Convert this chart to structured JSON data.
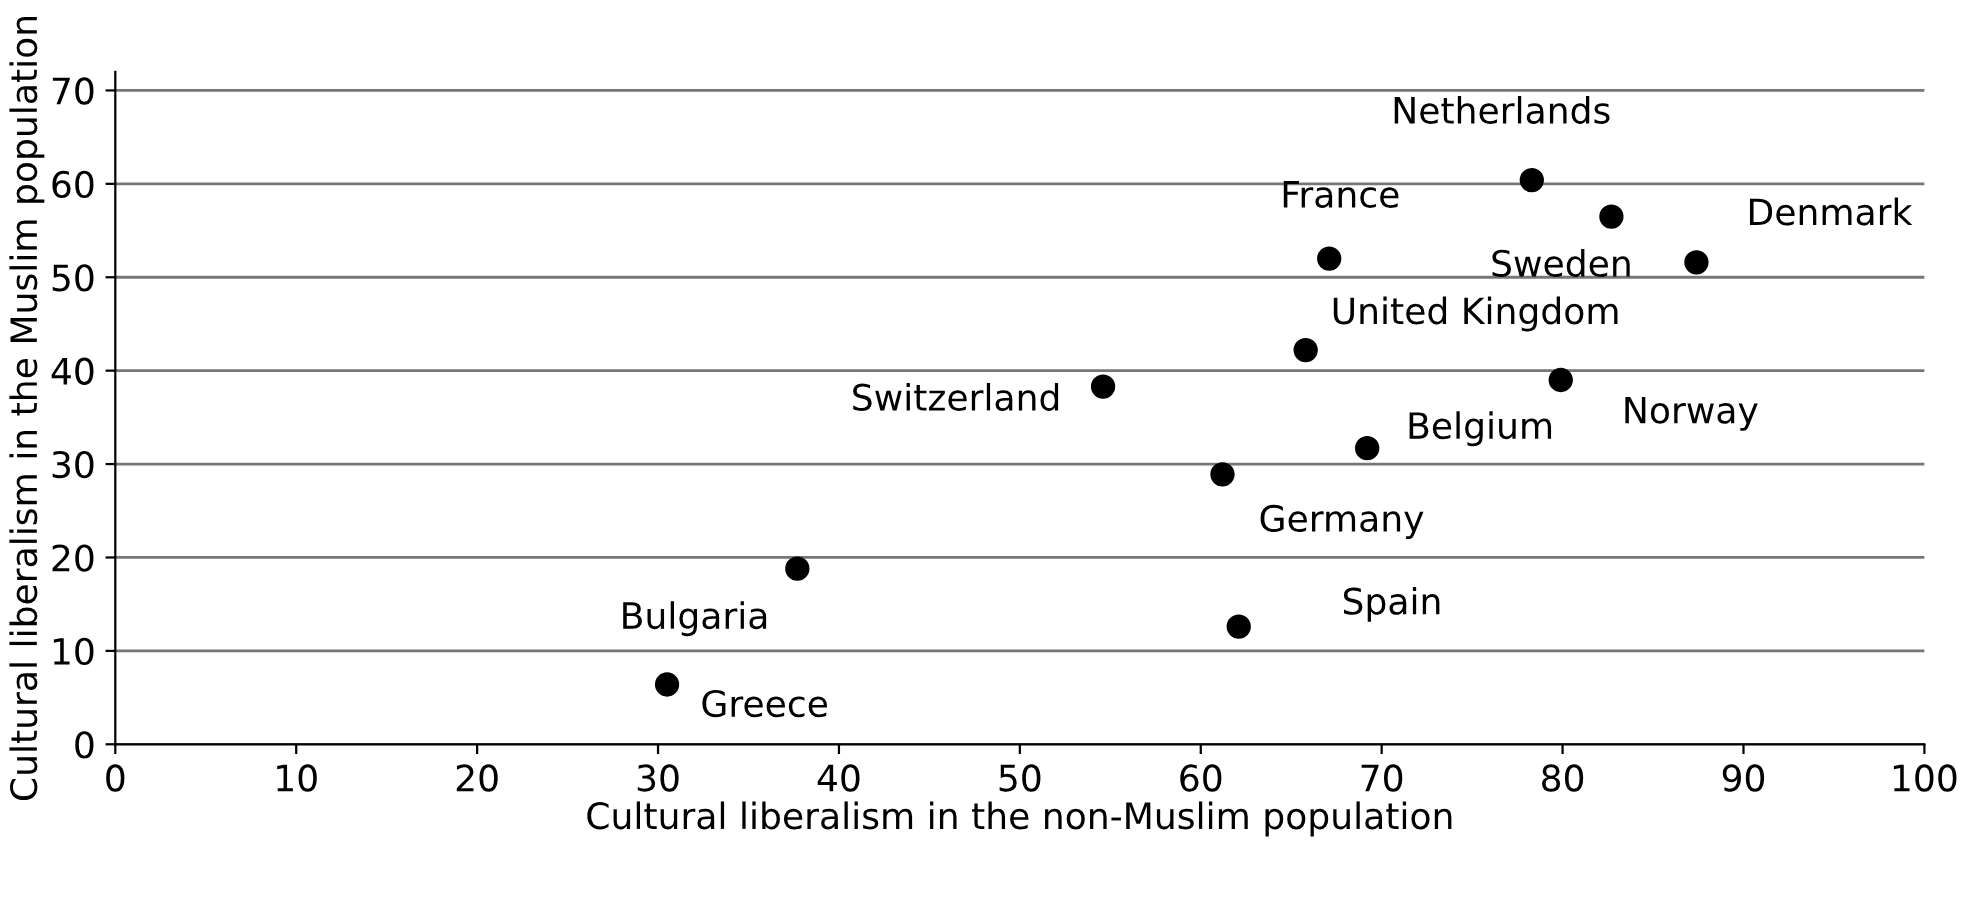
{
  "chart_data": {
    "type": "scatter",
    "xlabel": "Cultural liberalism in the non-Muslim population",
    "ylabel": "Cultural liberalism in the Muslim population",
    "x": [
      78.3,
      82.7,
      87.4,
      67.1,
      65.8,
      54.6,
      79.9,
      69.2,
      61.2,
      37.7,
      62.1,
      30.5
    ],
    "series": [
      {
        "color": "#000000",
        "values": [
          60.4,
          56.5,
          51.6,
          52.0,
          42.2,
          38.3,
          39.0,
          31.7,
          28.9,
          18.8,
          12.6,
          6.4
        ]
      }
    ],
    "annotations": [
      {
        "text": "Netherlands",
        "x": 78.3,
        "y": 60.4
      },
      {
        "text": "Sweden",
        "x": 82.7,
        "y": 56.5
      },
      {
        "text": "Denmark",
        "x": 87.4,
        "y": 51.6
      },
      {
        "text": "France",
        "x": 67.1,
        "y": 52.0
      },
      {
        "text": "United Kingdom",
        "x": 65.8,
        "y": 42.2
      },
      {
        "text": "Switzerland",
        "x": 54.6,
        "y": 38.3
      },
      {
        "text": "Norway",
        "x": 79.9,
        "y": 39.0
      },
      {
        "text": "Belgium",
        "x": 69.2,
        "y": 31.7
      },
      {
        "text": "Germany",
        "x": 61.2,
        "y": 28.9
      },
      {
        "text": "Bulgaria",
        "x": 37.7,
        "y": 18.8
      },
      {
        "text": "Spain",
        "x": 62.1,
        "y": 12.6
      },
      {
        "text": "Greece",
        "x": 30.5,
        "y": 6.4
      }
    ],
    "xlim": [
      0,
      100
    ],
    "ylim": [
      0,
      72
    ],
    "xticks": [
      0,
      10,
      20,
      30,
      40,
      50,
      60,
      70,
      80,
      90,
      100
    ],
    "yticks": [
      0,
      10,
      20,
      30,
      40,
      50,
      60,
      70
    ],
    "grid": "y",
    "marker": "circle",
    "legend": false
  }
}
